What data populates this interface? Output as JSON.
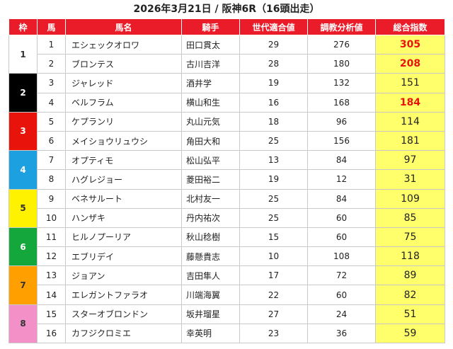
{
  "title": "2026年3月21日 / 阪神6R（16頭出走）",
  "headers": [
    "枠",
    "馬",
    "馬名",
    "騎手",
    "世代適合値",
    "調教分析値",
    "総合指数"
  ],
  "colors": {
    "header_bg": "#ea1c2a",
    "total_bg": "#ffff6b",
    "highlight_text": "#e8140c",
    "waku": {
      "1": "#ffffff",
      "2": "#000000",
      "3": "#e8140c",
      "4": "#1ca0e0",
      "5": "#fff200",
      "6": "#14a83c",
      "7": "#ffa000",
      "8": "#f490c8"
    }
  },
  "waku": [
    "1",
    "2",
    "3",
    "4",
    "5",
    "6",
    "7",
    "8"
  ],
  "rows": [
    {
      "uma": "1",
      "name": "エシェックオロワ",
      "jockey": "田口貫太",
      "sedai": "29",
      "chokyo": "276",
      "total": "305",
      "highlight": true
    },
    {
      "uma": "2",
      "name": "ブロンテス",
      "jockey": "古川吉洋",
      "sedai": "28",
      "chokyo": "180",
      "total": "208",
      "highlight": true
    },
    {
      "uma": "3",
      "name": "ジャレッド",
      "jockey": "酒井学",
      "sedai": "19",
      "chokyo": "132",
      "total": "151",
      "highlight": false
    },
    {
      "uma": "4",
      "name": "ベルフラム",
      "jockey": "横山和生",
      "sedai": "16",
      "chokyo": "168",
      "total": "184",
      "highlight": true
    },
    {
      "uma": "5",
      "name": "ケプランリ",
      "jockey": "丸山元気",
      "sedai": "18",
      "chokyo": "96",
      "total": "114",
      "highlight": false
    },
    {
      "uma": "6",
      "name": "メイショウリュウシ",
      "jockey": "角田大和",
      "sedai": "25",
      "chokyo": "156",
      "total": "181",
      "highlight": false
    },
    {
      "uma": "7",
      "name": "オプティモ",
      "jockey": "松山弘平",
      "sedai": "13",
      "chokyo": "84",
      "total": "97",
      "highlight": false
    },
    {
      "uma": "8",
      "name": "ハグレジョー",
      "jockey": "菱田裕二",
      "sedai": "19",
      "chokyo": "12",
      "total": "31",
      "highlight": false
    },
    {
      "uma": "9",
      "name": "ベネサルート",
      "jockey": "北村友一",
      "sedai": "25",
      "chokyo": "84",
      "total": "109",
      "highlight": false
    },
    {
      "uma": "10",
      "name": "ハンザキ",
      "jockey": "丹内祐次",
      "sedai": "25",
      "chokyo": "60",
      "total": "85",
      "highlight": false
    },
    {
      "uma": "11",
      "name": "ヒルノプーリア",
      "jockey": "秋山稔樹",
      "sedai": "15",
      "chokyo": "60",
      "total": "75",
      "highlight": false
    },
    {
      "uma": "12",
      "name": "エブリデイ",
      "jockey": "藤懸貴志",
      "sedai": "10",
      "chokyo": "108",
      "total": "118",
      "highlight": false
    },
    {
      "uma": "13",
      "name": "ジョアン",
      "jockey": "吉田隼人",
      "sedai": "17",
      "chokyo": "72",
      "total": "89",
      "highlight": false
    },
    {
      "uma": "14",
      "name": "エレガントファラオ",
      "jockey": "川端海翼",
      "sedai": "22",
      "chokyo": "60",
      "total": "82",
      "highlight": false
    },
    {
      "uma": "15",
      "name": "スターオブロンドン",
      "jockey": "坂井瑠星",
      "sedai": "27",
      "chokyo": "24",
      "total": "51",
      "highlight": false
    },
    {
      "uma": "16",
      "name": "カフジクロミエ",
      "jockey": "幸英明",
      "sedai": "23",
      "chokyo": "36",
      "total": "59",
      "highlight": false
    }
  ]
}
